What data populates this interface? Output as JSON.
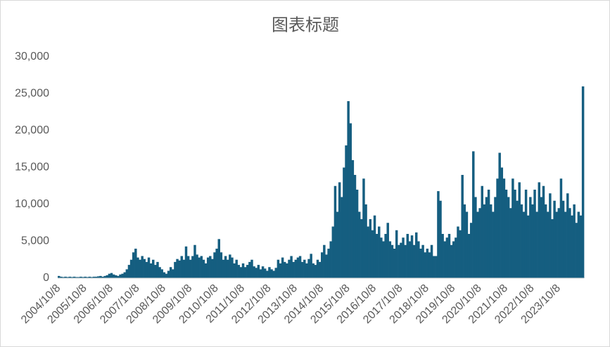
{
  "chart_data": {
    "type": "bar",
    "title": "图表标题",
    "color": "#155e80",
    "grid": false,
    "ylim": [
      0,
      30000
    ],
    "yticks": [
      0,
      {
        "value": 5000,
        "label": "5,000"
      },
      {
        "value": 10000,
        "label": "10,000"
      },
      {
        "value": 15000,
        "label": "15,000"
      },
      {
        "value": 20000,
        "label": "20,000"
      },
      {
        "value": 25000,
        "label": "25,000"
      },
      {
        "value": 30000,
        "label": "30,000"
      }
    ],
    "categories": [
      "2004/10/8",
      null,
      null,
      null,
      null,
      null,
      null,
      null,
      null,
      null,
      null,
      null,
      "2005/10/8",
      null,
      null,
      null,
      null,
      null,
      null,
      null,
      null,
      null,
      null,
      null,
      "2006/10/8",
      null,
      null,
      null,
      null,
      null,
      null,
      null,
      null,
      null,
      null,
      null,
      "2007/10/8",
      null,
      null,
      null,
      null,
      null,
      null,
      null,
      null,
      null,
      null,
      null,
      "2008/10/8",
      null,
      null,
      null,
      null,
      null,
      null,
      null,
      null,
      null,
      null,
      null,
      "2009/10/8",
      null,
      null,
      null,
      null,
      null,
      null,
      null,
      null,
      null,
      null,
      null,
      "2010/10/8",
      null,
      null,
      null,
      null,
      null,
      null,
      null,
      null,
      null,
      null,
      null,
      "2011/10/8",
      null,
      null,
      null,
      null,
      null,
      null,
      null,
      null,
      null,
      null,
      null,
      "2012/10/8",
      null,
      null,
      null,
      null,
      null,
      null,
      null,
      null,
      null,
      null,
      null,
      "2013/10/8",
      null,
      null,
      null,
      null,
      null,
      null,
      null,
      null,
      null,
      null,
      null,
      "2014/10/8",
      null,
      null,
      null,
      null,
      null,
      null,
      null,
      null,
      null,
      null,
      null,
      "2015/10/8",
      null,
      null,
      null,
      null,
      null,
      null,
      null,
      null,
      null,
      null,
      null,
      "2016/10/8",
      null,
      null,
      null,
      null,
      null,
      null,
      null,
      null,
      null,
      null,
      null,
      "2017/10/8",
      null,
      null,
      null,
      null,
      null,
      null,
      null,
      null,
      null,
      null,
      null,
      "2018/10/8",
      null,
      null,
      null,
      null,
      null,
      null,
      null,
      null,
      null,
      null,
      null,
      "2019/10/8",
      null,
      null,
      null,
      null,
      null,
      null,
      null,
      null,
      null,
      null,
      null,
      "2020/10/8",
      null,
      null,
      null,
      null,
      null,
      null,
      null,
      null,
      null,
      null,
      null,
      "2021/10/8",
      null,
      null,
      null,
      null,
      null,
      null,
      null,
      null,
      null,
      null,
      null,
      "2022/10/8",
      null,
      null,
      null,
      null,
      null,
      null,
      null,
      null,
      null,
      null,
      null,
      "2023/10/8",
      null,
      null,
      null,
      null,
      null,
      null,
      null,
      null,
      null,
      null,
      null
    ],
    "values": [
      300,
      200,
      150,
      200,
      150,
      200,
      150,
      200,
      150,
      150,
      200,
      150,
      200,
      150,
      200,
      150,
      200,
      200,
      250,
      300,
      200,
      300,
      400,
      600,
      700,
      500,
      400,
      300,
      500,
      600,
      800,
      1200,
      1800,
      2500,
      3500,
      4000,
      2800,
      2500,
      3000,
      2600,
      2200,
      2800,
      2000,
      2500,
      1800,
      2200,
      1500,
      1200,
      800,
      600,
      1000,
      1500,
      1200,
      2200,
      2600,
      2400,
      3000,
      2500,
      4300,
      3000,
      2500,
      3000,
      4500,
      3200,
      2800,
      3000,
      2500,
      2000,
      2800,
      3000,
      2600,
      3500,
      4000,
      5300,
      3500,
      2500,
      3000,
      2500,
      3200,
      2800,
      2000,
      2500,
      1800,
      1500,
      2000,
      1500,
      1800,
      2200,
      2500,
      1600,
      1400,
      1800,
      1200,
      1600,
      1300,
      1000,
      1500,
      1200,
      1000,
      1400,
      2500,
      2000,
      2800,
      2200,
      2000,
      2500,
      3000,
      2200,
      2500,
      2800,
      3000,
      2200,
      2500,
      2000,
      2600,
      3300,
      2000,
      1800,
      2500,
      2200,
      3500,
      4500,
      3200,
      4000,
      5000,
      7000,
      12500,
      9000,
      13000,
      11000,
      15000,
      18000,
      24000,
      21000,
      16000,
      14000,
      12000,
      9000,
      8000,
      13500,
      10000,
      7000,
      8000,
      6500,
      8500,
      6000,
      7000,
      5500,
      5000,
      6000,
      7500,
      5000,
      4500,
      4000,
      6500,
      4500,
      4800,
      5500,
      4500,
      6000,
      5000,
      5800,
      4500,
      6200,
      5000,
      4000,
      4500,
      3500,
      4000,
      3500,
      4500,
      3000,
      3000,
      11800,
      10500,
      6000,
      5000,
      5500,
      6000,
      4500,
      5000,
      5500,
      7000,
      6500,
      14000,
      10000,
      9000,
      6000,
      7500,
      17200,
      11000,
      9000,
      9500,
      12500,
      10000,
      11000,
      12000,
      10000,
      9000,
      11000,
      13500,
      17000,
      15000,
      13500,
      12000,
      11000,
      9500,
      13500,
      12000,
      10500,
      13000,
      10000,
      9000,
      12000,
      8500,
      11000,
      10000,
      12000,
      9000,
      13000,
      11000,
      12500,
      10000,
      9000,
      11500,
      8000,
      10500,
      9000,
      9500,
      13500,
      10500,
      9000,
      11500,
      9500,
      8500,
      10000,
      7500,
      9000,
      8500,
      26000
    ]
  }
}
